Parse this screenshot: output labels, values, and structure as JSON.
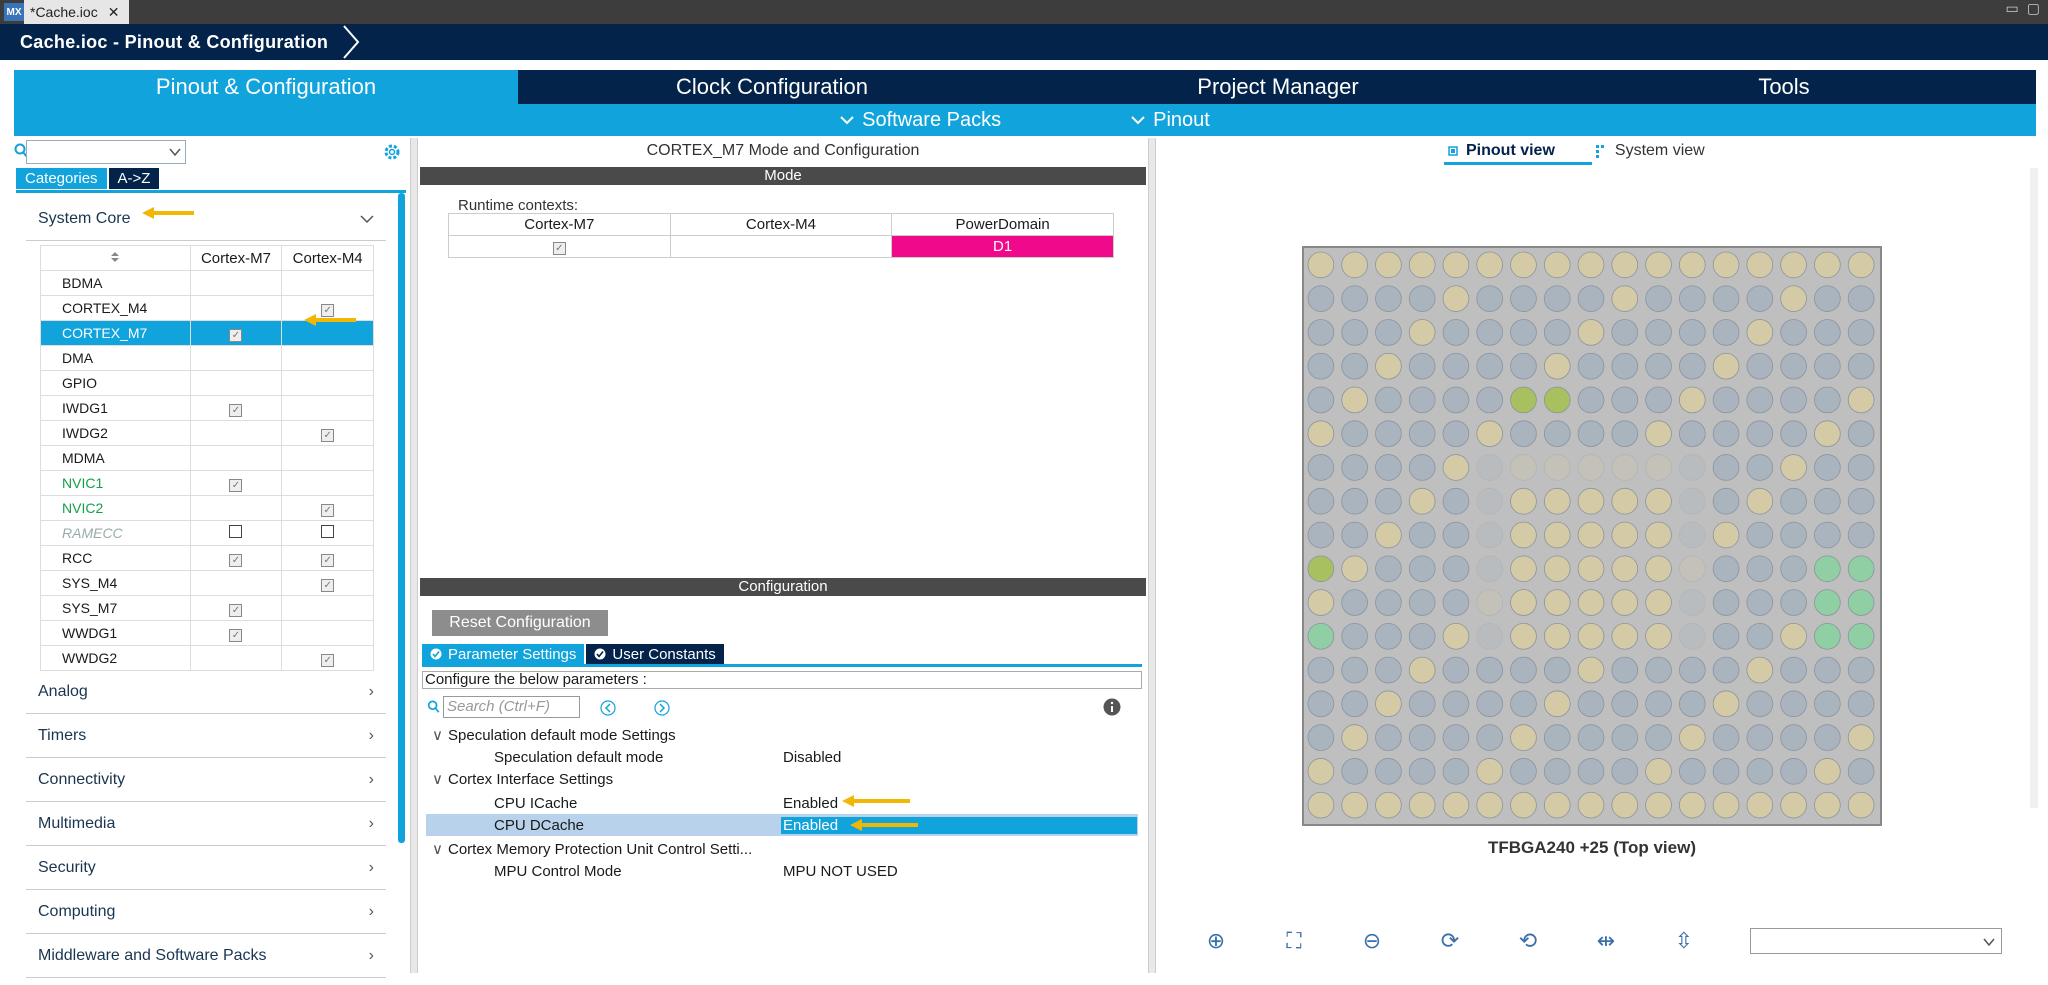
{
  "window": {
    "app_badge": "MX",
    "file_tab": "*Cache.ioc",
    "close_glyph": "✕",
    "minimize_glyph": "▭",
    "maximize_glyph": "▢"
  },
  "header": {
    "breadcrumb": "Cache.ioc - Pinout & Configuration"
  },
  "main_tabs": [
    "Pinout & Configuration",
    "Clock Configuration",
    "Project Manager",
    "Tools"
  ],
  "sub_bar": {
    "software_packs": "Software Packs",
    "pinout": "Pinout"
  },
  "left": {
    "cat_tabs": [
      "Categories",
      "A->Z"
    ],
    "system_core": "System Core",
    "col_headers": [
      "Cortex-M7",
      "Cortex-M4"
    ],
    "rows": [
      {
        "name": "BDMA",
        "m7": "",
        "m4": "",
        "style": ""
      },
      {
        "name": "CORTEX_M4",
        "m7": "",
        "m4": "check",
        "style": ""
      },
      {
        "name": "CORTEX_M7",
        "m7": "check",
        "m4": "",
        "style": "sel"
      },
      {
        "name": "DMA",
        "m7": "",
        "m4": "",
        "style": ""
      },
      {
        "name": "GPIO",
        "m7": "",
        "m4": "",
        "style": ""
      },
      {
        "name": "IWDG1",
        "m7": "check",
        "m4": "",
        "style": ""
      },
      {
        "name": "IWDG2",
        "m7": "",
        "m4": "check",
        "style": ""
      },
      {
        "name": "MDMA",
        "m7": "",
        "m4": "",
        "style": ""
      },
      {
        "name": "NVIC1",
        "m7": "check",
        "m4": "",
        "style": "green"
      },
      {
        "name": "NVIC2",
        "m7": "",
        "m4": "check",
        "style": "green"
      },
      {
        "name": "RAMECC",
        "m7": "empty",
        "m4": "empty",
        "style": "grey-i"
      },
      {
        "name": "RCC",
        "m7": "check",
        "m4": "check",
        "style": ""
      },
      {
        "name": "SYS_M4",
        "m7": "",
        "m4": "check",
        "style": ""
      },
      {
        "name": "SYS_M7",
        "m7": "check",
        "m4": "",
        "style": ""
      },
      {
        "name": "WWDG1",
        "m7": "check",
        "m4": "",
        "style": ""
      },
      {
        "name": "WWDG2",
        "m7": "",
        "m4": "check",
        "style": ""
      }
    ],
    "groups": [
      "Analog",
      "Timers",
      "Connectivity",
      "Multimedia",
      "Security",
      "Computing",
      "Middleware and Software Packs"
    ]
  },
  "middle": {
    "title": "CORTEX_M7 Mode and Configuration",
    "mode_bar": "Mode",
    "runtime_label": "Runtime contexts:",
    "runtime_headers": [
      "Cortex-M7",
      "Cortex-M4",
      "PowerDomain"
    ],
    "power_domain": "D1",
    "config_bar": "Configuration",
    "reset_button": "Reset Configuration",
    "param_tab": "Parameter Settings",
    "user_tab": "User Constants",
    "configure_text": "Configure the below parameters :",
    "search_placeholder": "Search (Ctrl+F)",
    "params": [
      {
        "type": "sec",
        "key": "Speculation default mode Settings",
        "value": ""
      },
      {
        "type": "item",
        "key": "Speculation default mode",
        "value": "Disabled"
      },
      {
        "type": "sec",
        "key": "Cortex Interface Settings",
        "value": ""
      },
      {
        "type": "item",
        "key": "CPU ICache",
        "value": "Enabled"
      },
      {
        "type": "hl",
        "key": "CPU DCache",
        "value": "Enabled"
      },
      {
        "type": "sec",
        "key": "Cortex Memory Protection Unit Control Setti...",
        "value": ""
      },
      {
        "type": "item",
        "key": "MPU Control Mode",
        "value": "MPU NOT USED"
      }
    ]
  },
  "right": {
    "pinout_view": "Pinout view",
    "system_view": "System view",
    "chip_label": "TFBGA240 +25 (Top view)"
  },
  "colors": {
    "accent": "#11a3dc",
    "navy": "#03234b",
    "power_domain": "#f0098a",
    "arrow": "#f2b705"
  }
}
